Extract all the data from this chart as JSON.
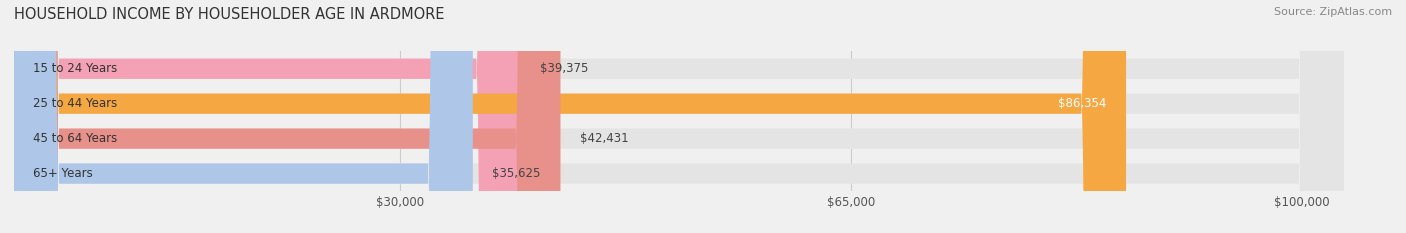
{
  "title": "HOUSEHOLD INCOME BY HOUSEHOLDER AGE IN ARDMORE",
  "source": "Source: ZipAtlas.com",
  "categories": [
    "15 to 24 Years",
    "25 to 44 Years",
    "45 to 64 Years",
    "65+ Years"
  ],
  "values": [
    39375,
    86354,
    42431,
    35625
  ],
  "bar_colors": [
    "#f4a0b5",
    "#f5a742",
    "#e8908a",
    "#aec6e8"
  ],
  "label_colors": [
    "#555555",
    "#ffffff",
    "#555555",
    "#555555"
  ],
  "x_ticks": [
    30000,
    65000,
    100000
  ],
  "x_tick_labels": [
    "$30,000",
    "$65,000",
    "$100,000"
  ],
  "xlim": [
    0,
    107000
  ],
  "background_color": "#f0f0f0",
  "bar_background_color": "#e4e4e4",
  "title_fontsize": 10.5,
  "label_fontsize": 8.5,
  "value_fontsize": 8.5,
  "source_fontsize": 8
}
